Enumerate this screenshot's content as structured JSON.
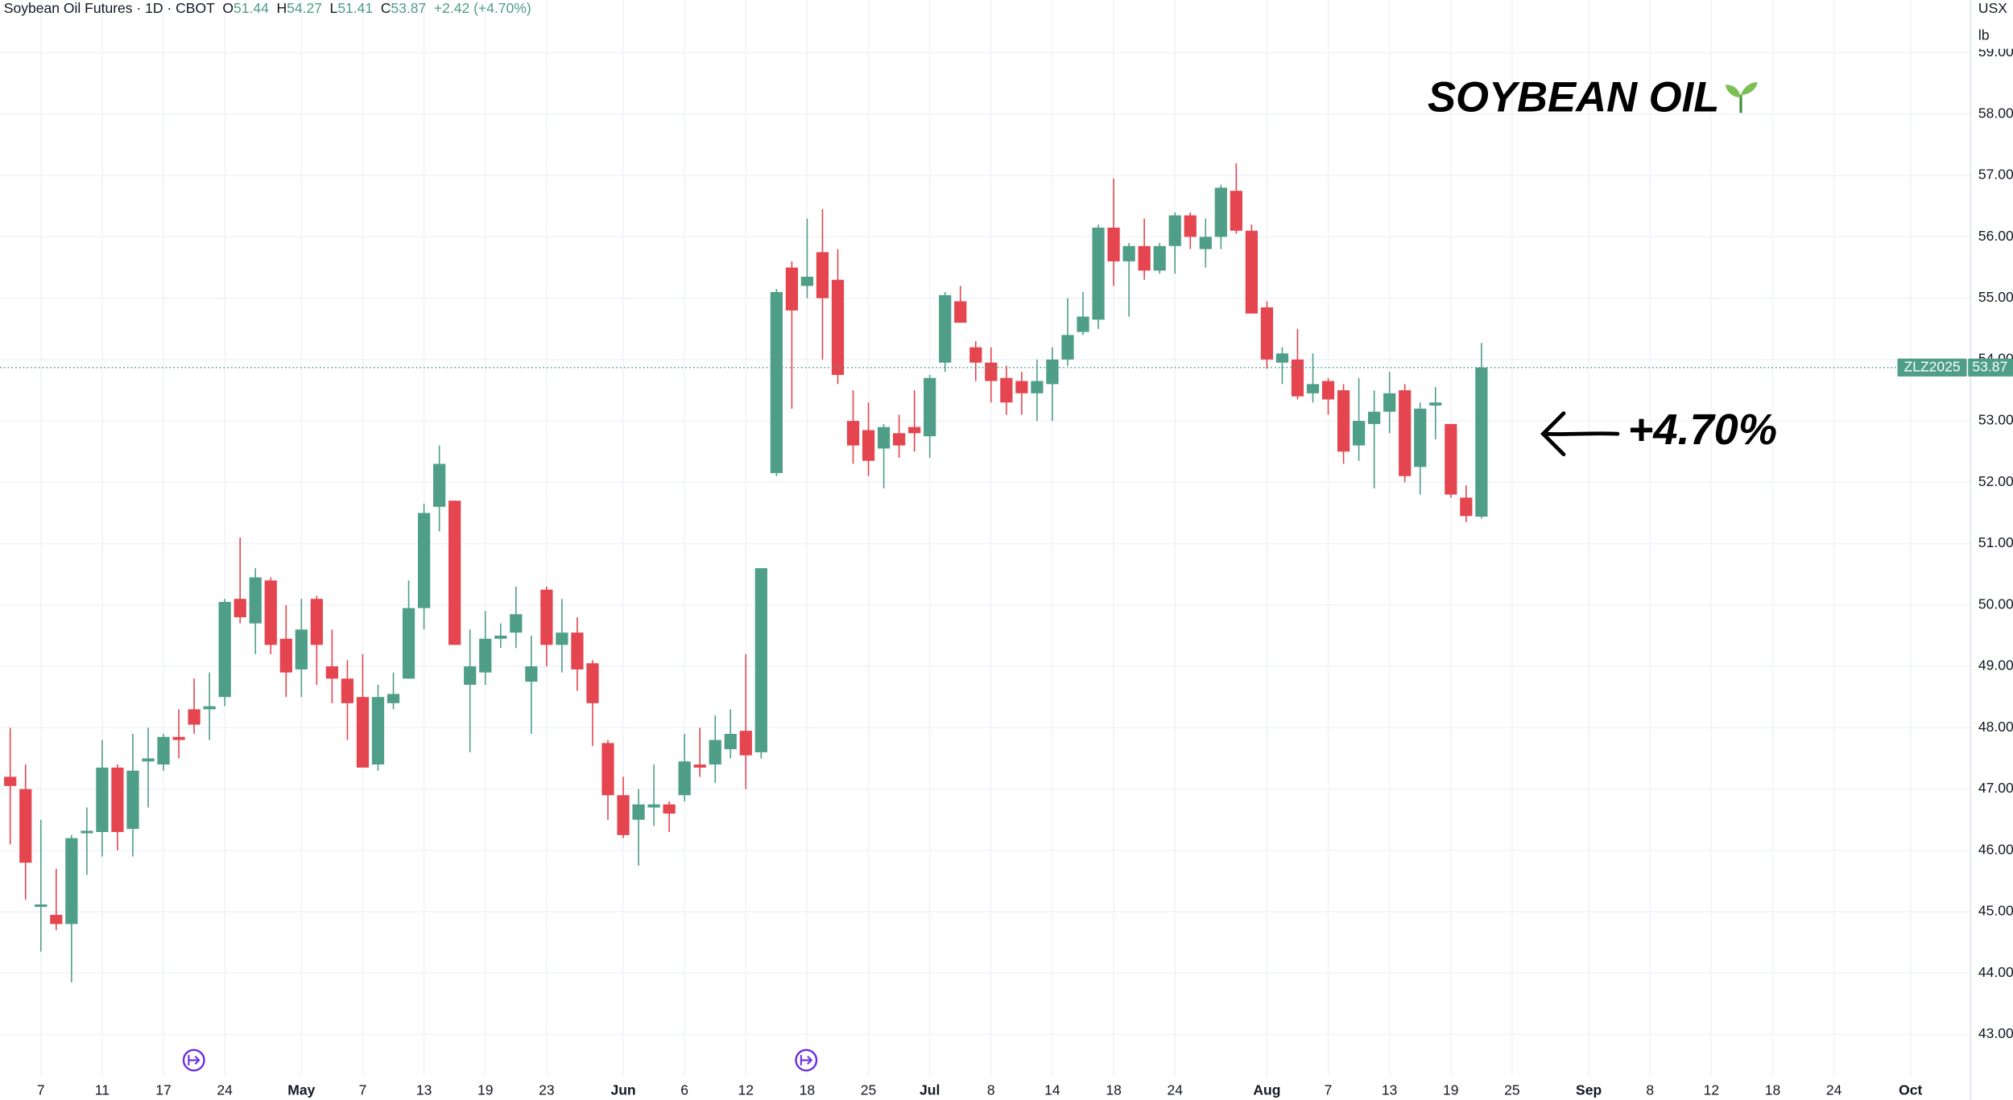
{
  "header": {
    "symbol": "Soybean Oil Futures · 1D · CBOT",
    "ohlc": [
      {
        "key": "O",
        "value": "51.44"
      },
      {
        "key": "H",
        "value": "54.27"
      },
      {
        "key": "L",
        "value": "51.41"
      },
      {
        "key": "C",
        "value": "53.87"
      }
    ],
    "change": "+2.42 (+4.70%)"
  },
  "chart_data": {
    "type": "candlestick",
    "title": "SOYBEAN OIL",
    "annotation": "+4.70%",
    "currency": "USX",
    "unit": "lb",
    "price_label": {
      "symbol": "ZLZ2025",
      "value": 53.87
    },
    "up_color": "#4e9e88",
    "down_color": "#e5454f",
    "grid": true,
    "ylim": [
      42.33,
      59.86
    ],
    "yticks": [
      {
        "value": 43,
        "label": "43.00"
      },
      {
        "value": 44,
        "label": "44.00"
      },
      {
        "value": 45,
        "label": "45.00"
      },
      {
        "value": 46,
        "label": "46.00"
      },
      {
        "value": 47,
        "label": "47.00"
      },
      {
        "value": 48,
        "label": "48.00"
      },
      {
        "value": 49,
        "label": "49.00"
      },
      {
        "value": 50,
        "label": "50.00"
      },
      {
        "value": 51,
        "label": "51.00"
      },
      {
        "value": 52,
        "label": "52.00"
      },
      {
        "value": 53,
        "label": "53.00"
      },
      {
        "value": 54,
        "label": "54.00"
      },
      {
        "value": 55,
        "label": "55.00"
      },
      {
        "value": 56,
        "label": "56.00"
      },
      {
        "value": 57,
        "label": "57.00"
      },
      {
        "value": 58,
        "label": "58.00"
      },
      {
        "value": 59,
        "label": "59.00"
      }
    ],
    "categories": [
      null,
      null,
      "7",
      null,
      null,
      null,
      "11",
      null,
      null,
      null,
      "17",
      null,
      null,
      null,
      "24",
      null,
      null,
      null,
      null,
      "May",
      null,
      null,
      null,
      "7",
      null,
      null,
      null,
      "13",
      null,
      null,
      null,
      "19",
      null,
      null,
      null,
      "23",
      null,
      null,
      null,
      null,
      "Jun",
      null,
      null,
      null,
      "6",
      null,
      null,
      null,
      "12",
      null,
      null,
      null,
      "18",
      null,
      null,
      null,
      "25",
      null,
      null,
      null,
      "Jul",
      null,
      null,
      null,
      "8",
      null,
      null,
      null,
      "14",
      null,
      null,
      null,
      "18",
      null,
      null,
      null,
      "24",
      null,
      null,
      null,
      null,
      null,
      "Aug",
      null,
      null,
      null,
      "7",
      null,
      null,
      null,
      "13",
      null,
      null,
      null,
      "19",
      null,
      null,
      null,
      "25",
      null,
      null,
      null,
      null,
      "Sep",
      null,
      null,
      null,
      "8",
      null,
      null,
      null,
      "12",
      null,
      null,
      null,
      "18",
      null,
      null,
      null,
      "24",
      null,
      null,
      null,
      null,
      "Oct",
      null,
      null,
      null
    ],
    "open": [
      47.2,
      47.0,
      45.08,
      44.95,
      44.8,
      46.28,
      46.3,
      47.35,
      46.35,
      47.45,
      47.4,
      47.85,
      48.3,
      48.3,
      48.5,
      50.1,
      49.7,
      50.4,
      49.45,
      48.95,
      50.1,
      49.0,
      48.8,
      48.5,
      47.4,
      48.4,
      48.8,
      49.95,
      51.6,
      51.7,
      48.7,
      48.9,
      49.45,
      49.55,
      48.75,
      50.25,
      49.35,
      49.55,
      49.05,
      47.75,
      46.9,
      46.5,
      46.7,
      46.75,
      46.9,
      47.4,
      47.4,
      47.65,
      47.95,
      47.6,
      52.15,
      55.5,
      55.2,
      55.75,
      55.3,
      53.0,
      52.85,
      52.55,
      52.8,
      52.9,
      52.75,
      53.95,
      54.95,
      54.2,
      53.95,
      53.7,
      53.65,
      53.45,
      53.6,
      54.0,
      54.45,
      54.65,
      56.15,
      55.6,
      55.85,
      55.45,
      55.85,
      56.35,
      55.8,
      56.0,
      56.75,
      56.1,
      54.85,
      53.95,
      54.0,
      53.45,
      53.65,
      53.5,
      52.6,
      52.95,
      53.15,
      53.5,
      52.25,
      53.25,
      52.95,
      51.75,
      51.44,
      null,
      null,
      null,
      null,
      null,
      null,
      null,
      null,
      null,
      null,
      null,
      null,
      null,
      null,
      null,
      null,
      null,
      null,
      null,
      null,
      null,
      null,
      null,
      null,
      null,
      null,
      null,
      null,
      null,
      null,
      null
    ],
    "high": [
      48.0,
      47.4,
      46.5,
      45.7,
      46.25,
      46.7,
      47.8,
      47.4,
      47.9,
      48.0,
      47.9,
      48.3,
      48.8,
      48.9,
      50.1,
      51.1,
      50.6,
      50.45,
      50.0,
      50.1,
      50.15,
      49.6,
      49.1,
      49.2,
      48.7,
      48.9,
      50.4,
      51.65,
      52.6,
      51.7,
      49.6,
      49.9,
      49.7,
      50.3,
      49.5,
      50.3,
      50.1,
      49.8,
      49.1,
      47.8,
      47.2,
      47.0,
      47.4,
      46.8,
      47.9,
      48.0,
      48.2,
      48.3,
      49.2,
      50.6,
      55.15,
      55.6,
      56.3,
      56.45,
      55.8,
      53.5,
      53.3,
      52.95,
      53.1,
      53.5,
      53.75,
      55.1,
      55.2,
      54.3,
      54.2,
      53.9,
      53.8,
      54.0,
      54.2,
      55.0,
      55.1,
      56.2,
      56.95,
      55.9,
      56.3,
      55.9,
      56.4,
      56.4,
      56.3,
      56.85,
      57.2,
      56.2,
      54.95,
      54.2,
      54.5,
      54.1,
      53.7,
      53.6,
      53.7,
      53.5,
      53.8,
      53.6,
      53.3,
      53.55,
      52.95,
      51.95,
      54.27,
      null,
      null,
      null,
      null,
      null,
      null,
      null,
      null,
      null,
      null,
      null,
      null,
      null,
      null,
      null,
      null,
      null,
      null,
      null,
      null,
      null,
      null,
      null,
      null,
      null,
      null,
      null,
      null,
      null,
      null,
      null
    ],
    "low": [
      46.1,
      45.2,
      44.35,
      44.7,
      43.85,
      45.6,
      45.9,
      46.0,
      45.9,
      46.7,
      47.3,
      47.5,
      47.9,
      47.8,
      48.35,
      49.7,
      49.2,
      49.2,
      48.5,
      48.5,
      48.7,
      48.4,
      47.8,
      47.35,
      47.3,
      48.3,
      48.8,
      49.6,
      51.2,
      49.35,
      47.6,
      48.7,
      49.3,
      49.3,
      47.9,
      49.0,
      48.9,
      48.6,
      47.7,
      46.5,
      46.2,
      45.75,
      46.4,
      46.3,
      46.8,
      47.2,
      47.1,
      47.5,
      47.0,
      47.5,
      52.1,
      53.2,
      55.0,
      54.0,
      53.6,
      52.3,
      52.1,
      51.9,
      52.4,
      52.5,
      52.4,
      53.8,
      54.6,
      53.65,
      53.3,
      53.1,
      53.1,
      53.0,
      53.0,
      53.9,
      54.4,
      54.5,
      55.2,
      54.7,
      55.3,
      55.4,
      55.4,
      55.8,
      55.5,
      55.8,
      56.05,
      54.75,
      53.85,
      53.6,
      53.35,
      53.3,
      53.1,
      52.3,
      52.35,
      51.9,
      52.8,
      52.0,
      51.8,
      52.7,
      51.75,
      51.35,
      51.41,
      null,
      null,
      null,
      null,
      null,
      null,
      null,
      null,
      null,
      null,
      null,
      null,
      null,
      null,
      null,
      null,
      null,
      null,
      null,
      null,
      null,
      null,
      null,
      null,
      null,
      null,
      null,
      null,
      null,
      null,
      null
    ],
    "close": [
      47.05,
      45.8,
      45.12,
      44.8,
      46.2,
      46.32,
      47.35,
      46.3,
      47.3,
      47.5,
      47.85,
      47.8,
      48.05,
      48.35,
      50.05,
      49.8,
      50.45,
      49.35,
      48.9,
      49.6,
      49.35,
      48.8,
      48.4,
      47.35,
      48.5,
      48.55,
      49.95,
      51.5,
      52.3,
      49.35,
      49.0,
      49.45,
      49.5,
      49.85,
      49.0,
      49.35,
      49.55,
      48.95,
      48.4,
      46.9,
      46.25,
      46.75,
      46.75,
      46.6,
      47.45,
      47.35,
      47.8,
      47.9,
      47.55,
      50.6,
      55.1,
      54.8,
      55.35,
      55.0,
      53.75,
      52.6,
      52.35,
      52.9,
      52.6,
      52.8,
      53.7,
      55.05,
      54.6,
      53.95,
      53.65,
      53.3,
      53.45,
      53.65,
      54.0,
      54.4,
      54.7,
      56.15,
      55.6,
      55.85,
      55.45,
      55.85,
      56.35,
      56.0,
      56.0,
      56.8,
      56.1,
      54.75,
      54.0,
      54.1,
      53.4,
      53.6,
      53.35,
      52.5,
      53.0,
      53.15,
      53.45,
      52.1,
      53.2,
      53.3,
      51.8,
      51.45,
      53.87,
      null,
      null,
      null,
      null,
      null,
      null,
      null,
      null,
      null,
      null,
      null,
      null,
      null,
      null,
      null,
      null,
      null,
      null,
      null,
      null,
      null,
      null,
      null,
      null,
      null,
      null,
      null,
      null,
      null,
      null,
      null
    ]
  }
}
